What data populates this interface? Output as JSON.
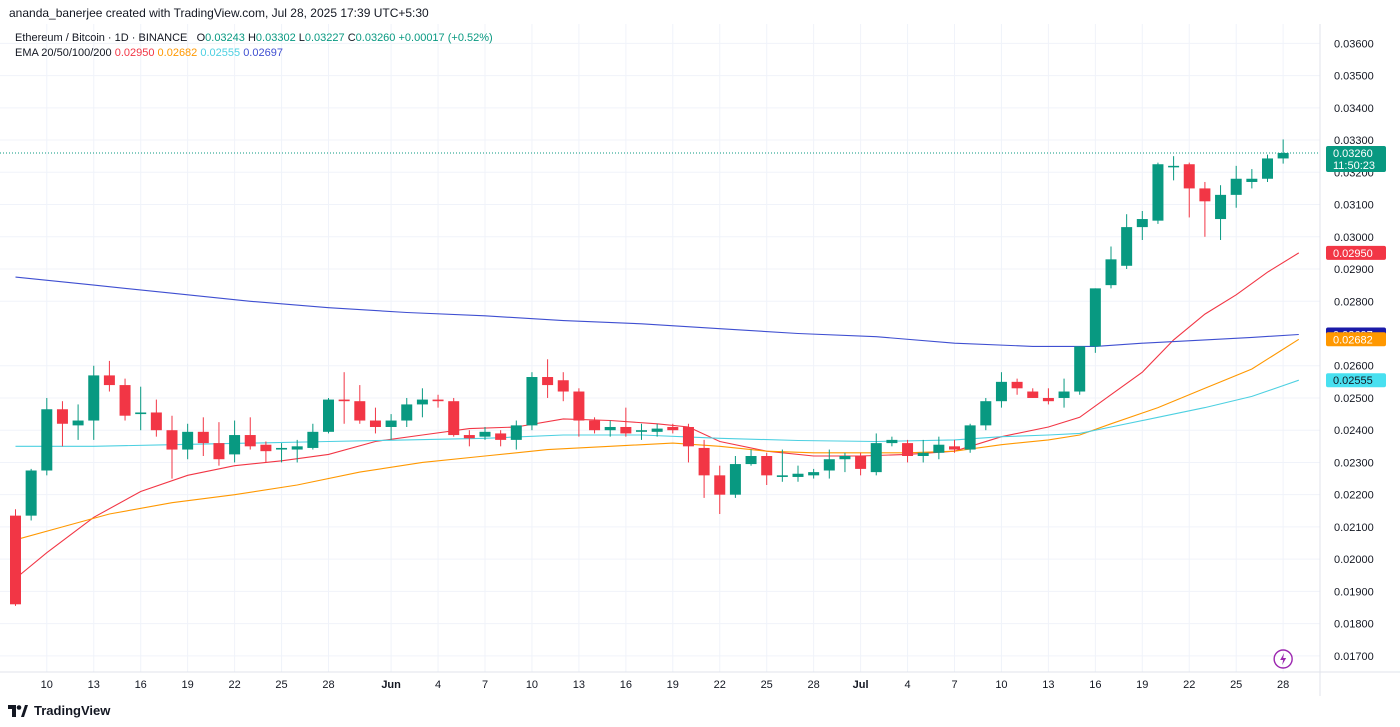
{
  "header": {
    "attribution": "ananda_banerjee created with TradingView.com, Jul 28, 2025 17:39 UTC+5:30"
  },
  "legend": {
    "symbol": "Ethereum / Bitcoin · 1D · BINANCE",
    "o_label": "O",
    "o": "0.03243",
    "h_label": "H",
    "h": "0.03302",
    "l_label": "L",
    "l": "0.03227",
    "c_label": "C",
    "c": "0.03260",
    "change": "+0.00017 (+0.52%)",
    "ema_label": "EMA 20/50/100/200",
    "ema20": "0.02950",
    "ema50": "0.02682",
    "ema100": "0.02555",
    "ema200": "0.02697"
  },
  "price_badge": {
    "value": "0.03260",
    "countdown": "11:50:23"
  },
  "brand": {
    "name": "TradingView"
  },
  "colors": {
    "up": "#089981",
    "down": "#f23645",
    "ema20": "#f23645",
    "ema50": "#ff9800",
    "ema100": "#4dd0e1",
    "ema200": "#3f4fd1"
  },
  "chart_data": {
    "type": "candlestick",
    "title": "Ethereum / Bitcoin · 1D · BINANCE",
    "ylim": [
      0.0165,
      0.0366
    ],
    "y_ticks": [
      "0.01700",
      "0.01800",
      "0.01900",
      "0.02000",
      "0.02100",
      "0.02200",
      "0.02300",
      "0.02400",
      "0.02500",
      "0.02600",
      "0.02800",
      "0.02900",
      "0.03000",
      "0.03100",
      "0.03200",
      "0.03300",
      "0.03400",
      "0.03500",
      "0.03600"
    ],
    "x_ticks": [
      {
        "label": "10",
        "i": 2
      },
      {
        "label": "13",
        "i": 5
      },
      {
        "label": "16",
        "i": 8
      },
      {
        "label": "19",
        "i": 11
      },
      {
        "label": "22",
        "i": 14
      },
      {
        "label": "25",
        "i": 17
      },
      {
        "label": "28",
        "i": 20
      },
      {
        "label": "Jun",
        "i": 24
      },
      {
        "label": "4",
        "i": 27
      },
      {
        "label": "7",
        "i": 30
      },
      {
        "label": "10",
        "i": 33
      },
      {
        "label": "13",
        "i": 36
      },
      {
        "label": "16",
        "i": 39
      },
      {
        "label": "19",
        "i": 42
      },
      {
        "label": "22",
        "i": 45
      },
      {
        "label": "25",
        "i": 48
      },
      {
        "label": "28",
        "i": 51
      },
      {
        "label": "Jul",
        "i": 54
      },
      {
        "label": "4",
        "i": 57
      },
      {
        "label": "7",
        "i": 60
      },
      {
        "label": "10",
        "i": 63
      },
      {
        "label": "13",
        "i": 66
      },
      {
        "label": "16",
        "i": 69
      },
      {
        "label": "19",
        "i": 72
      },
      {
        "label": "22",
        "i": 75
      },
      {
        "label": "25",
        "i": 78
      },
      {
        "label": "28",
        "i": 81
      }
    ],
    "candles": [
      [
        0.02135,
        0.02155,
        0.01855,
        0.0186
      ],
      [
        0.02135,
        0.0228,
        0.0212,
        0.02275
      ],
      [
        0.02275,
        0.025,
        0.0226,
        0.02465
      ],
      [
        0.02465,
        0.0249,
        0.0235,
        0.0242
      ],
      [
        0.02415,
        0.0248,
        0.0237,
        0.0243
      ],
      [
        0.0243,
        0.026,
        0.0237,
        0.0257
      ],
      [
        0.0257,
        0.02615,
        0.0252,
        0.0254
      ],
      [
        0.0254,
        0.0256,
        0.0243,
        0.02445
      ],
      [
        0.0245,
        0.02535,
        0.024,
        0.02455
      ],
      [
        0.02455,
        0.02495,
        0.0238,
        0.024
      ],
      [
        0.024,
        0.02445,
        0.0225,
        0.0234
      ],
      [
        0.0234,
        0.0242,
        0.0231,
        0.02395
      ],
      [
        0.02395,
        0.0244,
        0.0232,
        0.0236
      ],
      [
        0.0236,
        0.02425,
        0.0229,
        0.0231
      ],
      [
        0.02325,
        0.0243,
        0.023,
        0.02385
      ],
      [
        0.02385,
        0.0244,
        0.0234,
        0.0235
      ],
      [
        0.02355,
        0.02365,
        0.023,
        0.02335
      ],
      [
        0.0234,
        0.0236,
        0.023,
        0.02345
      ],
      [
        0.0234,
        0.0237,
        0.023,
        0.0235
      ],
      [
        0.02345,
        0.0242,
        0.0234,
        0.02395
      ],
      [
        0.02395,
        0.025,
        0.0239,
        0.02495
      ],
      [
        0.02495,
        0.0258,
        0.0242,
        0.0249
      ],
      [
        0.0249,
        0.0254,
        0.0242,
        0.0243
      ],
      [
        0.0243,
        0.0247,
        0.0239,
        0.0241
      ],
      [
        0.0241,
        0.0245,
        0.0237,
        0.0243
      ],
      [
        0.0243,
        0.025,
        0.0241,
        0.0248
      ],
      [
        0.0248,
        0.0253,
        0.0244,
        0.02495
      ],
      [
        0.02495,
        0.0251,
        0.0247,
        0.0249
      ],
      [
        0.0249,
        0.025,
        0.0238,
        0.02385
      ],
      [
        0.02385,
        0.024,
        0.0235,
        0.02375
      ],
      [
        0.0238,
        0.0241,
        0.0237,
        0.02395
      ],
      [
        0.0239,
        0.024,
        0.0235,
        0.0237
      ],
      [
        0.0237,
        0.0243,
        0.0234,
        0.02415
      ],
      [
        0.02415,
        0.0258,
        0.024,
        0.02565
      ],
      [
        0.02565,
        0.0262,
        0.025,
        0.0254
      ],
      [
        0.02555,
        0.0258,
        0.0249,
        0.0252
      ],
      [
        0.0252,
        0.0253,
        0.0238,
        0.0243
      ],
      [
        0.0243,
        0.0244,
        0.0239,
        0.024
      ],
      [
        0.024,
        0.0243,
        0.0238,
        0.0241
      ],
      [
        0.0241,
        0.0247,
        0.0238,
        0.0239
      ],
      [
        0.02395,
        0.0242,
        0.0237,
        0.024
      ],
      [
        0.02395,
        0.0242,
        0.0238,
        0.02405
      ],
      [
        0.0241,
        0.0242,
        0.0239,
        0.024
      ],
      [
        0.0241,
        0.0242,
        0.023,
        0.0235
      ],
      [
        0.02345,
        0.0237,
        0.0219,
        0.0226
      ],
      [
        0.0226,
        0.0229,
        0.0214,
        0.022
      ],
      [
        0.022,
        0.0232,
        0.0219,
        0.02295
      ],
      [
        0.02295,
        0.0234,
        0.0229,
        0.0232
      ],
      [
        0.0232,
        0.0233,
        0.0223,
        0.0226
      ],
      [
        0.02255,
        0.0234,
        0.0224,
        0.0226
      ],
      [
        0.02255,
        0.0229,
        0.0224,
        0.02265
      ],
      [
        0.0226,
        0.0228,
        0.0225,
        0.0227
      ],
      [
        0.02275,
        0.0234,
        0.0225,
        0.0231
      ],
      [
        0.0231,
        0.0233,
        0.0227,
        0.0232
      ],
      [
        0.0232,
        0.0233,
        0.0226,
        0.0228
      ],
      [
        0.0227,
        0.0239,
        0.0226,
        0.0236
      ],
      [
        0.0236,
        0.0238,
        0.0235,
        0.0237
      ],
      [
        0.0236,
        0.0237,
        0.023,
        0.0232
      ],
      [
        0.0232,
        0.0237,
        0.023,
        0.0233
      ],
      [
        0.0233,
        0.0238,
        0.0231,
        0.02355
      ],
      [
        0.0235,
        0.0237,
        0.0233,
        0.0234
      ],
      [
        0.0234,
        0.0242,
        0.0233,
        0.02415
      ],
      [
        0.02415,
        0.025,
        0.024,
        0.0249
      ],
      [
        0.0249,
        0.0258,
        0.0247,
        0.0255
      ],
      [
        0.0255,
        0.0256,
        0.0251,
        0.0253
      ],
      [
        0.0252,
        0.0253,
        0.025,
        0.025
      ],
      [
        0.025,
        0.0253,
        0.0248,
        0.0249
      ],
      [
        0.025,
        0.0256,
        0.0247,
        0.0252
      ],
      [
        0.0252,
        0.0266,
        0.0251,
        0.0266
      ],
      [
        0.0266,
        0.0284,
        0.0264,
        0.0284
      ],
      [
        0.0285,
        0.0297,
        0.0284,
        0.0293
      ],
      [
        0.0291,
        0.0307,
        0.029,
        0.0303
      ],
      [
        0.0303,
        0.0308,
        0.0299,
        0.03055
      ],
      [
        0.0305,
        0.0323,
        0.0304,
        0.03225
      ],
      [
        0.0322,
        0.0325,
        0.03175,
        0.0322
      ],
      [
        0.03225,
        0.0323,
        0.0306,
        0.0315
      ],
      [
        0.0315,
        0.0317,
        0.03,
        0.0311
      ],
      [
        0.03055,
        0.0316,
        0.0299,
        0.0313
      ],
      [
        0.0313,
        0.0322,
        0.0309,
        0.0318
      ],
      [
        0.0317,
        0.0321,
        0.0315,
        0.0318
      ],
      [
        0.0318,
        0.03255,
        0.0317,
        0.03243
      ],
      [
        0.03243,
        0.03302,
        0.03227,
        0.0326
      ]
    ],
    "ema": [
      {
        "name": "EMA 20",
        "key": "ema20",
        "points": [
          [
            0,
            0.0194
          ],
          [
            2,
            0.0202
          ],
          [
            5,
            0.0213
          ],
          [
            8,
            0.0221
          ],
          [
            11,
            0.0226
          ],
          [
            14,
            0.0229
          ],
          [
            17,
            0.02305
          ],
          [
            20,
            0.02325
          ],
          [
            23,
            0.02365
          ],
          [
            26,
            0.02385
          ],
          [
            29,
            0.02405
          ],
          [
            32,
            0.0241
          ],
          [
            35,
            0.02435
          ],
          [
            38,
            0.0243
          ],
          [
            41,
            0.0242
          ],
          [
            43,
            0.0241
          ],
          [
            45,
            0.02365
          ],
          [
            48,
            0.02335
          ],
          [
            51,
            0.0232
          ],
          [
            54,
            0.0232
          ],
          [
            57,
            0.02325
          ],
          [
            60,
            0.02335
          ],
          [
            63,
            0.0238
          ],
          [
            66,
            0.0241
          ],
          [
            68,
            0.0244
          ],
          [
            70,
            0.0251
          ],
          [
            72,
            0.0258
          ],
          [
            74,
            0.0268
          ],
          [
            76,
            0.0276
          ],
          [
            78,
            0.0282
          ],
          [
            80,
            0.0289
          ],
          [
            82,
            0.0295
          ]
        ]
      },
      {
        "name": "EMA 50",
        "key": "ema50",
        "points": [
          [
            0,
            0.0206
          ],
          [
            3,
            0.021
          ],
          [
            6,
            0.0214
          ],
          [
            10,
            0.02175
          ],
          [
            14,
            0.022
          ],
          [
            18,
            0.0223
          ],
          [
            22,
            0.0227
          ],
          [
            26,
            0.023
          ],
          [
            30,
            0.0232
          ],
          [
            34,
            0.0234
          ],
          [
            38,
            0.0235
          ],
          [
            42,
            0.0236
          ],
          [
            45,
            0.0235
          ],
          [
            48,
            0.02335
          ],
          [
            51,
            0.0233
          ],
          [
            54,
            0.0233
          ],
          [
            57,
            0.0233
          ],
          [
            60,
            0.02335
          ],
          [
            63,
            0.02355
          ],
          [
            66,
            0.0237
          ],
          [
            68,
            0.02385
          ],
          [
            70,
            0.0242
          ],
          [
            73,
            0.0247
          ],
          [
            76,
            0.0253
          ],
          [
            79,
            0.0259
          ],
          [
            82,
            0.02682
          ]
        ]
      },
      {
        "name": "EMA 100",
        "key": "ema100",
        "points": [
          [
            0,
            0.0235
          ],
          [
            5,
            0.0235
          ],
          [
            10,
            0.02355
          ],
          [
            15,
            0.0236
          ],
          [
            20,
            0.02365
          ],
          [
            25,
            0.0237
          ],
          [
            30,
            0.02375
          ],
          [
            35,
            0.02385
          ],
          [
            40,
            0.02385
          ],
          [
            45,
            0.02375
          ],
          [
            50,
            0.02368
          ],
          [
            55,
            0.02365
          ],
          [
            60,
            0.0237
          ],
          [
            63,
            0.0238
          ],
          [
            66,
            0.02385
          ],
          [
            68,
            0.0239
          ],
          [
            70,
            0.0241
          ],
          [
            73,
            0.0244
          ],
          [
            76,
            0.0247
          ],
          [
            79,
            0.02505
          ],
          [
            82,
            0.02555
          ]
        ]
      },
      {
        "name": "EMA 200",
        "key": "ema200",
        "points": [
          [
            0,
            0.02875
          ],
          [
            5,
            0.0285
          ],
          [
            10,
            0.02825
          ],
          [
            15,
            0.028
          ],
          [
            20,
            0.0278
          ],
          [
            25,
            0.02765
          ],
          [
            30,
            0.02755
          ],
          [
            35,
            0.0274
          ],
          [
            40,
            0.0273
          ],
          [
            45,
            0.02715
          ],
          [
            50,
            0.027
          ],
          [
            55,
            0.0269
          ],
          [
            60,
            0.0267
          ],
          [
            65,
            0.0266
          ],
          [
            69,
            0.0266
          ],
          [
            72,
            0.0267
          ],
          [
            76,
            0.0268
          ],
          [
            79,
            0.02688
          ],
          [
            82,
            0.02697
          ]
        ]
      }
    ]
  }
}
